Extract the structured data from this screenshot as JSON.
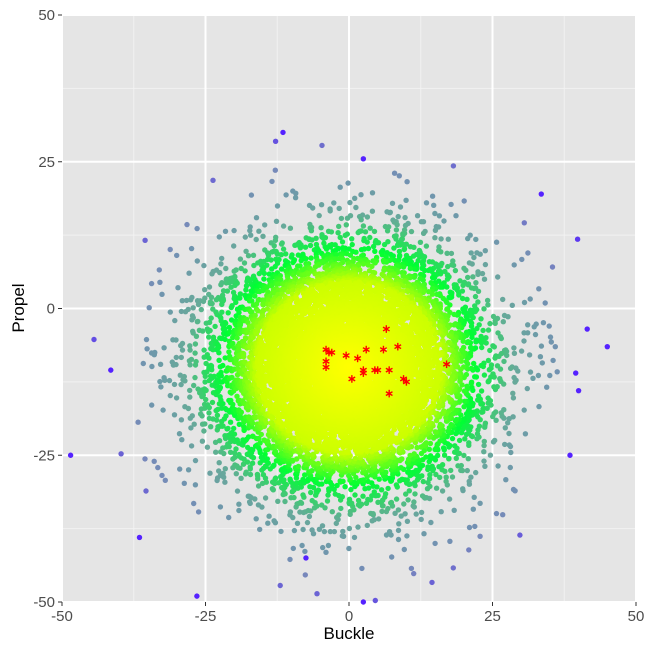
{
  "chart_data": {
    "type": "scatter",
    "title": "",
    "xlabel": "Buckle",
    "ylabel": "Propel",
    "xlim": [
      -50,
      50
    ],
    "ylim": [
      -50,
      50
    ],
    "x_ticks": [
      -50,
      -25,
      0,
      25,
      50
    ],
    "y_ticks": [
      -50,
      -25,
      0,
      25,
      50
    ],
    "x_tick_labels": [
      "-50",
      "-25",
      "0",
      "25",
      "50"
    ],
    "y_tick_labels": [
      "-50",
      "-25",
      "0",
      "25",
      "50"
    ],
    "grid": true,
    "legend": "none",
    "colors": {
      "panel_background": "#e5e5e5",
      "gridline": "#ffffff",
      "density_high": "#ffff00",
      "density_mid": "#00ff33",
      "density_low": "#66aa99",
      "density_outlier": "#5522ff",
      "highlight_marker": "#ff0000"
    },
    "cloud": {
      "description_center": [
        0,
        -10
      ],
      "count": 10000,
      "sd_x": 11,
      "sd_y": 10
    },
    "outliers": [
      {
        "x": -48.5,
        "y": -25
      },
      {
        "x": -36.5,
        "y": -39
      },
      {
        "x": -26.5,
        "y": -49
      },
      {
        "x": 2.5,
        "y": -50
      },
      {
        "x": -11.5,
        "y": 30
      },
      {
        "x": 33.5,
        "y": 19.5
      },
      {
        "x": 45,
        "y": -6.5
      },
      {
        "x": 41.5,
        "y": -3.5
      },
      {
        "x": 38.5,
        "y": -25
      },
      {
        "x": 39.5,
        "y": -11
      },
      {
        "x": 40,
        "y": -14
      },
      {
        "x": -41.5,
        "y": -10.5
      },
      {
        "x": 2.5,
        "y": 25.5
      },
      {
        "x": -7.5,
        "y": -42.5
      }
    ],
    "highlight_points": [
      {
        "x": -4,
        "y": -7
      },
      {
        "x": -3.5,
        "y": -7.5
      },
      {
        "x": -3,
        "y": -7.5
      },
      {
        "x": -4,
        "y": -9
      },
      {
        "x": -4,
        "y": -10
      },
      {
        "x": -0.5,
        "y": -8
      },
      {
        "x": 1.5,
        "y": -8.5
      },
      {
        "x": 3,
        "y": -7
      },
      {
        "x": 0.5,
        "y": -12
      },
      {
        "x": 2.5,
        "y": -10.5
      },
      {
        "x": 2.5,
        "y": -11
      },
      {
        "x": 4.5,
        "y": -10.5
      },
      {
        "x": 5,
        "y": -10.5
      },
      {
        "x": 6.5,
        "y": -3.5
      },
      {
        "x": 6,
        "y": -7
      },
      {
        "x": 7,
        "y": -10.5
      },
      {
        "x": 8.5,
        "y": -6.5
      },
      {
        "x": 9.5,
        "y": -12
      },
      {
        "x": 10,
        "y": -12.5
      },
      {
        "x": 7,
        "y": -14.5
      },
      {
        "x": 17,
        "y": -9.5
      }
    ]
  }
}
